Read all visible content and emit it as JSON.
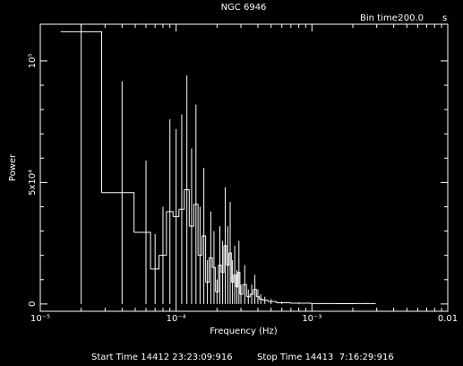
{
  "chart_data": {
    "type": "step",
    "title": "NGC 6946",
    "bin_time_label": "Bin time:",
    "bin_time_value": "200.0",
    "bin_time_unit": "s",
    "x_label": "Frequency (Hz)",
    "y_label": "Power",
    "start_time": "Start Time 14412 23:23:09:916",
    "stop_time": "Stop Time 14413  7:16:29:916",
    "log_x": true,
    "color": "#ffffff",
    "xlim": [
      1e-05,
      0.01
    ],
    "xticks": [
      {
        "value": 1e-05,
        "label": "10⁻⁵"
      },
      {
        "value": 0.0001,
        "label": "10⁻⁴"
      },
      {
        "value": 0.001,
        "label": "10⁻³"
      },
      0.01
    ],
    "ylim": [
      -3000,
      115100
    ],
    "yticks": [
      0,
      {
        "value": 50000,
        "label": "5x10⁴"
      },
      {
        "value": 100000,
        "label": "10⁵"
      }
    ],
    "x": [
      2e-05,
      4e-05,
      6e-05,
      7e-05,
      8e-05,
      9e-05,
      0.0001,
      0.00011,
      0.00012,
      0.00013,
      0.00014,
      0.00015,
      0.00016,
      0.00017,
      0.00018,
      0.00019,
      0.0002,
      0.00021,
      0.00022,
      0.00023,
      0.00024,
      0.00025,
      0.00026,
      0.00027,
      0.00028,
      0.00029,
      0.0003,
      0.00032,
      0.00034,
      0.00036,
      0.00038,
      0.0004,
      0.00042,
      0.00045,
      0.0005,
      0.0006,
      0.0008,
      0.0012,
      0.0018,
      0.0025
    ],
    "values": [
      112000,
      45800,
      29500,
      14400,
      20000,
      38000,
      36000,
      39000,
      47000,
      32000,
      41000,
      20000,
      28000,
      9000,
      19000,
      15000,
      5000,
      16000,
      13000,
      24000,
      16000,
      21000,
      9000,
      12000,
      7000,
      13000,
      4000,
      8000,
      3000,
      4000,
      6000,
      3000,
      2000,
      1500,
      1000,
      500,
      300,
      200,
      150,
      200
    ],
    "errors": [
      112000,
      45800,
      29500,
      14400,
      20000,
      38000,
      36000,
      39000,
      47000,
      32000,
      41000,
      20000,
      28000,
      9000,
      19000,
      15000,
      5000,
      16000,
      13000,
      24000,
      16000,
      21000,
      9000,
      12000,
      7000,
      13000,
      4000,
      8000,
      3000,
      4000,
      6000,
      3000,
      2000,
      1500,
      1000,
      500,
      300,
      200,
      150,
      200
    ]
  }
}
